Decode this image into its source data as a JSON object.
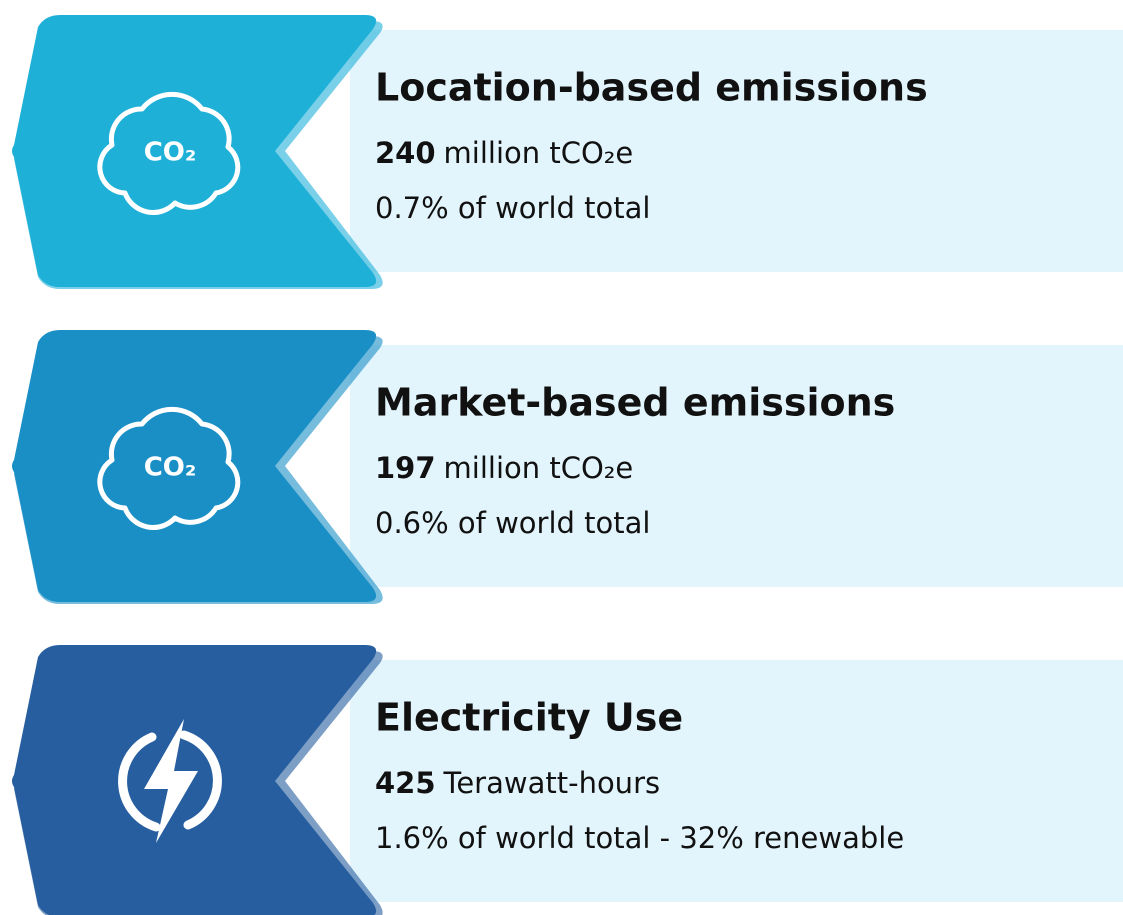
{
  "cards": [
    {
      "icon": "CO₂",
      "title": "Location-based emissions",
      "value": "240",
      "unit": "million tCO₂e",
      "share": "0.7% of world total",
      "color": "#1fb0d8"
    },
    {
      "icon": "CO₂",
      "title": "Market-based emissions",
      "value": "197",
      "unit": "million tCO₂e",
      "share": "0.6% of world total",
      "color": "#1a8fc6"
    },
    {
      "title": "Electricity Use",
      "value": "425",
      "unit": "Terawatt-hours",
      "share": "1.6% of world total - 32% renewable",
      "color": "#275e9f"
    }
  ]
}
